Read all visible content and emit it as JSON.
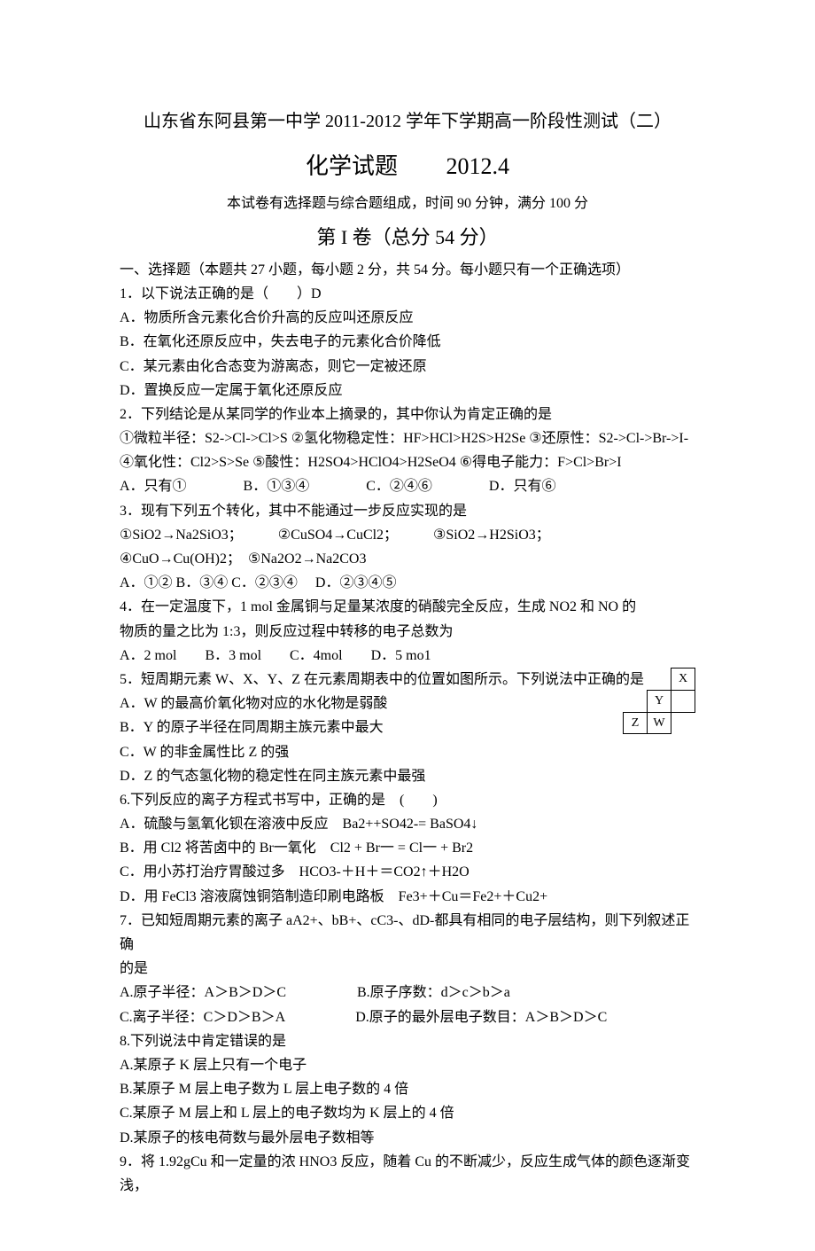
{
  "title1": "山东省东阿县第一中学 2011-2012 学年下学期高一阶段性测试（二）",
  "title2_main": "化学试题",
  "title2_date": "2012.4",
  "subtitle": "本试卷有选择题与综合题组成，时间 90 分钟，满分 100 分",
  "part_title": "第 I 卷（总分 54 分）",
  "section_heading": "一、选择题（本题共 27 小题，每小题 2 分，共 54 分。每小题只有一个正确选项）",
  "q1": {
    "stem": "1．以下说法正确的是（　　）D",
    "a": "A．物质所含元素化合价升高的反应叫还原反应",
    "b": "B．在氧化还原反应中，失去电子的元素化合价降低",
    "c": "C．某元素由化合态变为游离态，则它一定被还原",
    "d": "D．置换反应一定属于氧化还原反应"
  },
  "q2": {
    "stem": "2．下列结论是从某同学的作业本上摘录的，其中你认为肯定正确的是",
    "l1": "①微粒半径：S2->Cl->Cl>S  ②氢化物稳定性：HF>HCl>H2S>H2Se  ③还原性：S2->Cl->Br->I-",
    "l2": "④氧化性：Cl2>S>Se  ⑤酸性：H2SO4>HClO4>H2SeO4  ⑥得电子能力：F>Cl>Br>I",
    "opts": "A．只有①　　　　B．①③④　　　　C．②④⑥　　　　D．只有⑥"
  },
  "q3": {
    "stem": "3．现有下列五个转化，其中不能通过一步反应实现的是",
    "l1": "①SiO2→Na2SiO3；　　　②CuSO4→CuCl2；　　　③SiO2→H2SiO3；",
    "l2": "④CuO→Cu(OH)2；　⑤Na2O2→Na2CO3",
    "opts": "A．①②  B．③④  C．②③④　  D．②③④⑤"
  },
  "q4": {
    "stem1": "4．在一定温度下，1 mol 金属铜与足量某浓度的硝酸完全反应，生成 NO2 和 NO 的",
    "stem2": "物质的量之比为 1:3，则反应过程中转移的电子总数为",
    "opts": "A．2 mol　　B．3 mol　　C．4mol　　D．5 mo1"
  },
  "q5": {
    "stem": "5．短周期元素 W、X、Y、Z 在元素周期表中的位置如图所示。下列说法中正确的是",
    "a": "A．W 的最高价氧化物对应的水化物是弱酸",
    "b": "B．Y 的原子半径在同周期主族元素中最大",
    "c": "C．W 的非金属性比 Z 的强",
    "d": "D．Z 的气态氢化物的稳定性在同主族元素中最强",
    "table": {
      "x": "X",
      "y": "Y",
      "z": "Z",
      "w": "W"
    }
  },
  "q6": {
    "stem": "6.下列反应的离子方程式书写中，正确的是　(　　)",
    "a": "A．硫酸与氢氧化钡在溶液中反应　Ba2++SO42-= BaSO4↓",
    "b": "B．用 Cl2 将苦卤中的 Br一氧化　Cl2 + Br一 = Cl一  + Br2",
    "c": "C．用小苏打治疗胃酸过多　HCO3-＋H＋＝CO2↑＋H2O",
    "d": "D．用 FeCl3 溶液腐蚀铜箔制造印刷电路板　Fe3+＋Cu＝Fe2+＋Cu2+"
  },
  "q7": {
    "stem1": "7．已知短周期元素的离子 aA2+、bB+、cC3-、dD-都具有相同的电子层结构，则下列叙述正确",
    "stem2": "的是",
    "l1": "A.原子半径：A＞B＞D＞C　　　　　B.原子序数：d＞c＞b＞a",
    "l2": "C.离子半径：C＞D＞B＞A　　　　　D.原子的最外层电子数目：A＞B＞D＞C"
  },
  "q8": {
    "stem": "8.下列说法中肯定错误的是",
    "a": "A.某原子 K 层上只有一个电子",
    "b": "B.某原子 M 层上电子数为 L 层上电子数的 4 倍",
    "c": "C.某原子 M 层上和 L 层上的电子数均为 K 层上的 4 倍",
    "d": "D.某原子的核电荷数与最外层电子数相等"
  },
  "q9": {
    "stem": "9．将 1.92gCu 和一定量的浓 HNO3 反应，随着 Cu 的不断减少，反应生成气体的颜色逐渐变浅，"
  }
}
